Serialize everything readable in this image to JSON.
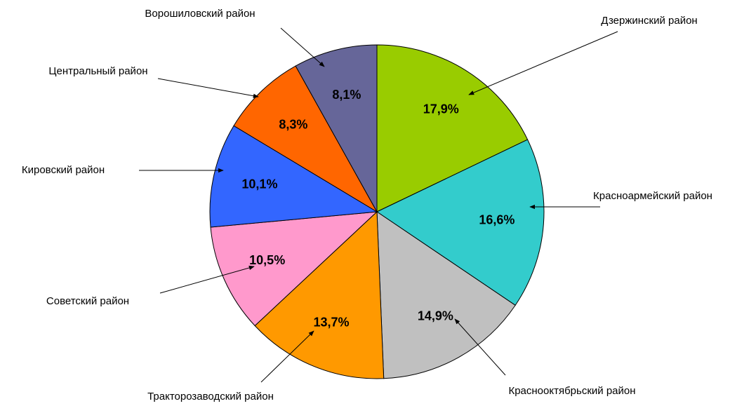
{
  "chart_data": {
    "type": "pie",
    "categories": [
      "Дзержинский район",
      "Красноармейский район",
      "Краснооктябрьский район",
      "Тракторозаводский район",
      "Советский район",
      "Кировский район",
      "Центральный район",
      "Ворошиловский район"
    ],
    "values": [
      17.9,
      16.6,
      14.9,
      13.7,
      10.5,
      10.1,
      8.3,
      8.1
    ],
    "value_labels": [
      "17,9%",
      "16,6%",
      "14,9%",
      "13,7%",
      "10,5%",
      "10,1%",
      "8,3%",
      "8,1%"
    ],
    "colors": [
      "#99cc00",
      "#33cccc",
      "#c0c0c0",
      "#ff9900",
      "#ff99cc",
      "#3366ff",
      "#ff6600",
      "#666699"
    ]
  }
}
